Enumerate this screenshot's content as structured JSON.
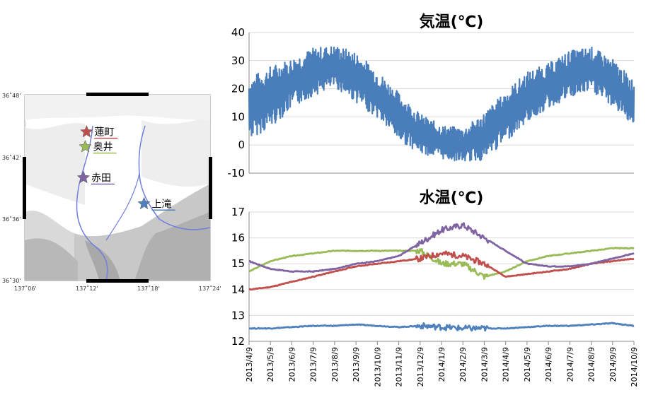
{
  "colors": {
    "air": "#4a7ebb",
    "hasumachi": "#c0504d",
    "okui": "#9bbb59",
    "akada": "#8064a2",
    "kamitaki": "#4f81bd",
    "river": "#6f7fdc"
  },
  "map": {
    "lat_ticks": [
      "36˚48'",
      "36˚42'",
      "36˚36'",
      "36˚30'"
    ],
    "lon_ticks": [
      "137˚06'",
      "137˚12'",
      "137˚18'",
      "137˚24'"
    ],
    "stations": [
      {
        "name": "蓮町",
        "color": "#c0504d",
        "lon": 137.2,
        "lat": 36.74
      },
      {
        "name": "奥井",
        "color": "#9bbb59",
        "lon": 137.198,
        "lat": 36.716
      },
      {
        "name": "赤田",
        "color": "#8064a2",
        "lon": 137.195,
        "lat": 36.666
      },
      {
        "name": "上滝",
        "color": "#4f81bd",
        "lon": 137.293,
        "lat": 36.624
      }
    ]
  },
  "chart_data": [
    {
      "type": "line",
      "title": "気温(℃)",
      "ylim": [
        -10,
        40
      ],
      "yticks": [
        "40",
        "30",
        "20",
        "10",
        "0",
        "-10"
      ],
      "grid": true,
      "series": [
        {
          "color": "#4a7ebb",
          "x": [
            "2013-04-09",
            "2013-05-09",
            "2013-06-09",
            "2013-07-09",
            "2013-08-09",
            "2013-09-09",
            "2013-10-09",
            "2013-11-09",
            "2013-12-09",
            "2014-01-09",
            "2014-02-09",
            "2014-03-09",
            "2014-04-09",
            "2014-05-09",
            "2014-06-09",
            "2014-07-09",
            "2014-08-09",
            "2014-09-09",
            "2014-10-09"
          ],
          "y": [
            13,
            17,
            22,
            26,
            28,
            24,
            18,
            10,
            4,
            1,
            0,
            3,
            10,
            17,
            21,
            25,
            27,
            22,
            15
          ],
          "y_min": [
            3,
            8,
            14,
            19,
            22,
            15,
            9,
            2,
            -2,
            -4,
            -4,
            -3,
            2,
            8,
            14,
            18,
            20,
            14,
            8
          ],
          "y_max": [
            25,
            30,
            32,
            36,
            37,
            33,
            26,
            19,
            12,
            8,
            8,
            14,
            20,
            26,
            30,
            35,
            36,
            31,
            24
          ]
        }
      ]
    },
    {
      "type": "line",
      "title": "水温(℃)",
      "ylim": [
        12,
        17
      ],
      "yticks": [
        "17",
        "16",
        "15",
        "14",
        "13",
        "12"
      ],
      "grid": true,
      "categories": [
        "2013/4/9",
        "2013/5/9",
        "2013/6/9",
        "2013/7/9",
        "2013/8/9",
        "2013/9/9",
        "2013/10/9",
        "2013/11/9",
        "2013/12/9",
        "2014/1/9",
        "2014/2/9",
        "2014/3/9",
        "2014/4/9",
        "2014/5/9",
        "2014/6/9",
        "2014/7/9",
        "2014/8/9",
        "2014/9/9",
        "2014/10/9"
      ],
      "series": [
        {
          "name": "蓮町",
          "color": "#c0504d",
          "values": [
            14.0,
            14.1,
            14.3,
            14.5,
            14.7,
            14.9,
            15.0,
            15.1,
            15.2,
            15.4,
            15.3,
            15.0,
            14.5,
            14.6,
            14.7,
            14.8,
            15.0,
            15.1,
            15.2
          ]
        },
        {
          "name": "奥井",
          "color": "#9bbb59",
          "values": [
            14.7,
            15.1,
            15.3,
            15.4,
            15.5,
            15.5,
            15.5,
            15.5,
            15.5,
            15.0,
            15.0,
            14.5,
            14.7,
            15.1,
            15.3,
            15.4,
            15.5,
            15.6,
            15.6
          ]
        },
        {
          "name": "赤田",
          "color": "#8064a2",
          "values": [
            15.1,
            14.8,
            14.7,
            14.7,
            14.8,
            15.0,
            15.1,
            15.3,
            15.8,
            16.3,
            16.5,
            16.0,
            15.5,
            15.0,
            14.9,
            14.9,
            15.0,
            15.2,
            15.4
          ]
        },
        {
          "name": "上滝",
          "color": "#4f81bd",
          "values": [
            12.5,
            12.5,
            12.55,
            12.6,
            12.6,
            12.65,
            12.6,
            12.55,
            12.6,
            12.55,
            12.5,
            12.5,
            12.5,
            12.55,
            12.6,
            12.6,
            12.65,
            12.7,
            12.6
          ]
        }
      ]
    }
  ]
}
